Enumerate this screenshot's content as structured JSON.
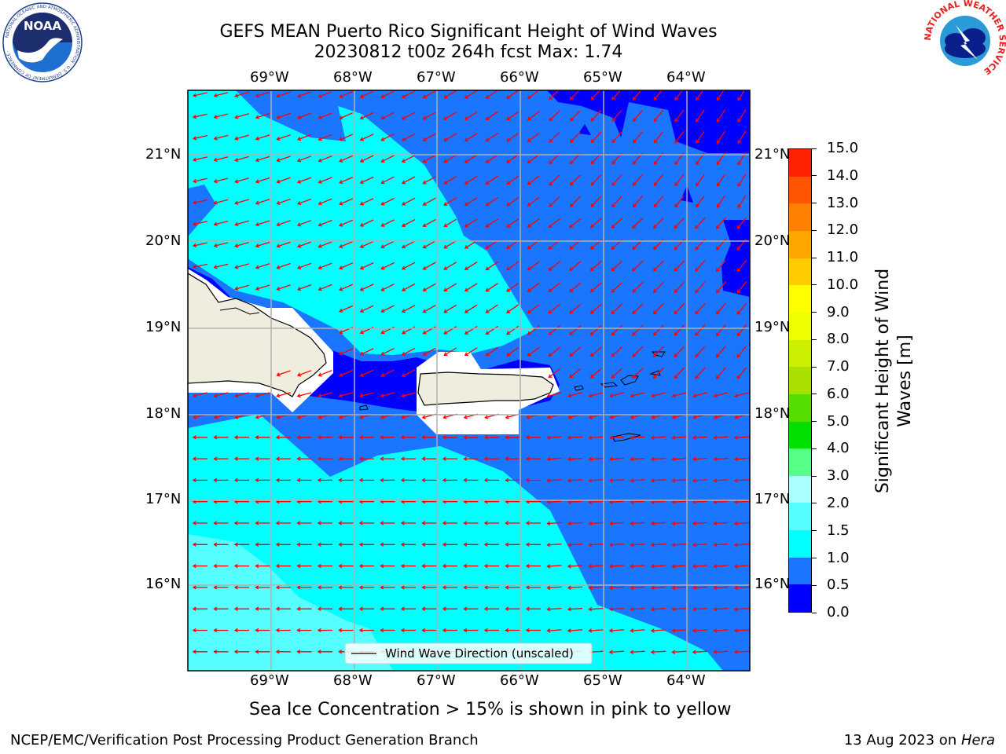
{
  "title": {
    "line1": "GEFS MEAN Puerto Rico Significant Height of Wind Waves",
    "line2": "20230812 t00z 264h fcst   Max: 1.74"
  },
  "map": {
    "lon_labels": [
      "69°W",
      "68°W",
      "67°W",
      "66°W",
      "65°W",
      "64°W"
    ],
    "lat_labels": [
      "21°N",
      "20°N",
      "19°N",
      "18°N",
      "17°N",
      "16°N"
    ],
    "extent": {
      "lon_min": -70.0,
      "lon_max": -63.25,
      "lat_min": 15.0,
      "lat_max": 21.75
    },
    "legend_label": "Wind Wave Direction (unscaled)",
    "colors": {
      "land": "#efedde",
      "coast": "#000000",
      "grid": "#b0b0b0",
      "arrow": "#ff0000"
    }
  },
  "colorbar": {
    "label_line1": "Significant Height of Wind",
    "label_line2": "Waves [m]",
    "ticks": [
      "0.0",
      "0.5",
      "1.0",
      "1.5",
      "2.0",
      "3.0",
      "4.0",
      "5.0",
      "6.0",
      "7.0",
      "8.0",
      "9.0",
      "10.0",
      "11.0",
      "12.0",
      "13.0",
      "14.0",
      "15.0"
    ],
    "colors": [
      "#0000ff",
      "#1a75ff",
      "#00ffff",
      "#55ffff",
      "#aaffff",
      "#55ff88",
      "#00e000",
      "#55dd00",
      "#aae000",
      "#ccee00",
      "#eeff00",
      "#ffff00",
      "#ffcc00",
      "#ffa500",
      "#ff8000",
      "#ff5500",
      "#ff2200",
      "#ff0000"
    ]
  },
  "sea_ice_note": "Sea Ice Concentration > 15% is shown in pink to yellow",
  "footer": {
    "left": "NCEP/EMC/Verification Post Processing Product Generation Branch",
    "right_date": "13 Aug 2023 on ",
    "right_host": "Hera"
  },
  "logos": {
    "noaa_text": "NOAA",
    "noaa_ring": "NATIONAL OCEANIC AND ATMOSPHERIC ADMINISTRATION · U.S. DEPARTMENT OF COMMERCE ·",
    "nws_ring": "NATIONAL WEATHER SERVICE"
  }
}
